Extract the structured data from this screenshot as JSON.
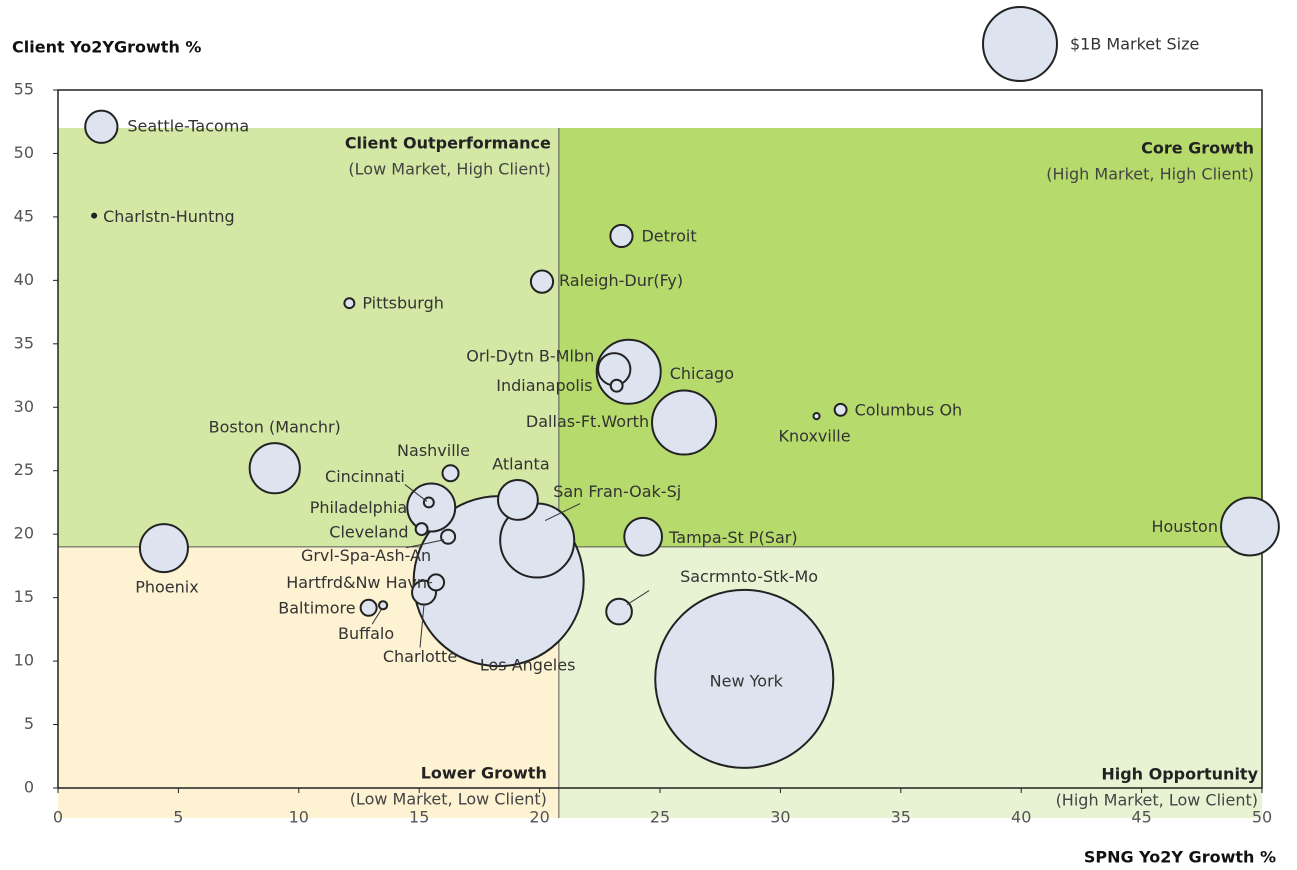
{
  "chart_data": {
    "type": "bubble",
    "y_label": "Client Yo2YGrowth %",
    "x_label": "SPNG Yo2Y Growth %",
    "xlim": [
      0,
      50
    ],
    "xticks": [
      0,
      5,
      10,
      15,
      20,
      25,
      30,
      35,
      40,
      45,
      50
    ],
    "ylim": [
      0,
      55
    ],
    "yticks": [
      0,
      5,
      10,
      15,
      20,
      25,
      30,
      35,
      40,
      45,
      50,
      55
    ],
    "legend": {
      "label": "$1B Market Size",
      "size": 1
    },
    "color": "#dde3ef",
    "x_divider": 20.8,
    "y_divider": 19,
    "quadrants": [
      {
        "title": "Client Outperformance",
        "subtitle": "(Low Market, High Client)",
        "color": "#d3e8a4"
      },
      {
        "title": "Core Growth",
        "subtitle": "(High Market, High Client)",
        "color": "#b6da6c"
      },
      {
        "title": "Lower Growth",
        "subtitle": "(Low Market, Low Client)",
        "color": "#fdf2d2"
      },
      {
        "title": "High Opportunity",
        "subtitle": "(High Market, Low Client)",
        "color": "#e8f3d4"
      }
    ],
    "names": [
      "Seattle-Tacoma",
      "Charlstn-Huntng",
      "Pittsburgh",
      "Detroit",
      "Raleigh-Dur(Fy)",
      "Orl-Dytn B-Mlbn",
      "Chicago",
      "Indianapolis",
      "Dallas-Ft.Worth",
      "Knoxville",
      "Columbus  Oh",
      "Boston (Manchr)",
      "Nashville",
      "Cincinnati",
      "Philadelphia",
      "Atlanta",
      "San Fran-Oak-Sj",
      "Cleveland",
      "Grvl-Spa-Ash-An",
      "Phoenix",
      "Tampa-St P(Sar)",
      "Houston",
      "Hartfrd&Nw Havn",
      "Charlotte",
      "Baltimore",
      "Buffalo",
      "Los Angeles",
      "Sacrmnto-Stk-Mo",
      "New York"
    ],
    "x": [
      1.8,
      1.5,
      12.1,
      23.4,
      20.1,
      23.1,
      23.7,
      23.2,
      26.0,
      31.5,
      32.5,
      9.0,
      16.3,
      15.4,
      15.5,
      19.1,
      19.9,
      15.1,
      16.2,
      4.4,
      24.3,
      49.5,
      15.7,
      15.2,
      12.9,
      13.5,
      18.3,
      23.3,
      28.5
    ],
    "y": [
      52.1,
      45.1,
      38.2,
      43.5,
      39.9,
      33.0,
      32.8,
      31.7,
      28.8,
      29.3,
      29.8,
      25.2,
      24.8,
      22.5,
      22.1,
      22.7,
      19.5,
      20.4,
      19.8,
      18.9,
      19.8,
      20.6,
      16.2,
      15.4,
      14.2,
      14.4,
      16.3,
      13.9,
      8.6
    ],
    "sizes": [
      0.19,
      0.003,
      0.018,
      0.09,
      0.09,
      0.19,
      0.75,
      0.026,
      0.75,
      0.007,
      0.026,
      0.46,
      0.047,
      0.018,
      0.42,
      0.29,
      1.0,
      0.026,
      0.036,
      0.42,
      0.26,
      0.61,
      0.047,
      0.105,
      0.047,
      0.012,
      5.28,
      0.12,
      5.79
    ]
  }
}
